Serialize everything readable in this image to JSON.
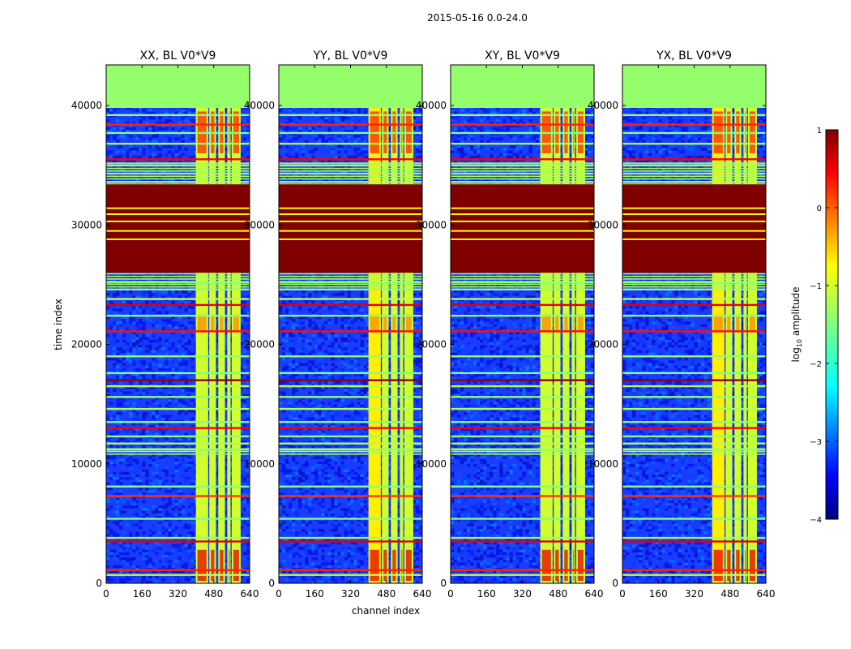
{
  "figure": {
    "suptitle": "2015-05-16 0.0-24.0"
  },
  "chart_data": {
    "type": "heatmap",
    "x_label": "channel index",
    "y_label": "time index",
    "xlim": [
      0,
      640
    ],
    "ylim": [
      0,
      43400
    ],
    "x_ticks": [
      0,
      160,
      320,
      480,
      640
    ],
    "y_ticks": [
      0,
      10000,
      20000,
      30000,
      40000
    ],
    "panels": [
      {
        "title": "XX, BL V0*V9"
      },
      {
        "title": "YY, BL V0*V9"
      },
      {
        "title": "XY, BL V0*V9"
      },
      {
        "title": "YX, BL V0*V9"
      }
    ],
    "colorbar": {
      "label_prefix": "log",
      "label_subscript": "10",
      "label_suffix": " amplitude",
      "range": [
        -4,
        1
      ],
      "ticks": [
        "1",
        "0",
        "−1",
        "−2",
        "−3",
        "−4"
      ],
      "colormap": "jet"
    },
    "bands": {
      "flagged_top": {
        "y_range": [
          39800,
          43400
        ],
        "value": -1.4
      },
      "saturated": {
        "y_range": [
          26000,
          33400
        ],
        "value": 1.0
      },
      "bright_channels": [
        [
          400,
          455
        ],
        [
          460,
          490
        ],
        [
          500,
          530
        ],
        [
          540,
          555
        ],
        [
          560,
          600
        ]
      ]
    }
  }
}
